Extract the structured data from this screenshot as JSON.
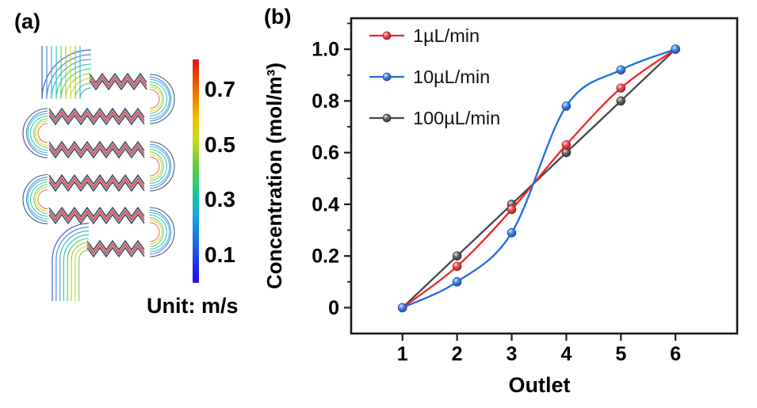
{
  "figure": {
    "panel_a": {
      "label": "(a)",
      "colorbar": {
        "tick_labels": [
          "0.7",
          "0.5",
          "0.3",
          "0.1"
        ],
        "unit_label": "Unit: m/s",
        "gradient_stops": [
          "#e01313 0%",
          "#ee6a00 13%",
          "#f0c400 27%",
          "#c8dc20 36%",
          "#62cc3a 48%",
          "#16c896 60%",
          "#12aadc 70%",
          "#1e6ce6 82%",
          "#2222ee 94%",
          "#2a10e8 100%"
        ]
      }
    },
    "panel_b": {
      "label": "(b)"
    }
  },
  "chart_data": {
    "type": "line",
    "title": "",
    "xlabel": "Outlet",
    "ylabel": "Concentration (mol/m³)",
    "x": [
      1,
      2,
      3,
      4,
      5,
      6
    ],
    "series": [
      {
        "name": "1µL/min",
        "color": "#ee2429",
        "values": [
          0,
          0.16,
          0.38,
          0.63,
          0.85,
          1.0
        ]
      },
      {
        "name": "10µL/min",
        "color": "#1d6ce8",
        "values": [
          0,
          0.1,
          0.29,
          0.78,
          0.92,
          1.0
        ]
      },
      {
        "name": "100µL/min",
        "color": "#474747",
        "values": [
          0,
          0.2,
          0.4,
          0.6,
          0.8,
          1.0
        ]
      }
    ],
    "draw_order": [
      2,
      0,
      1
    ],
    "xlim": [
      0.06,
      7.13
    ],
    "ylim": [
      -0.1,
      1.12
    ],
    "xticks": [
      1,
      2,
      3,
      4,
      5,
      6
    ],
    "xtick_labels": [
      "1",
      "2",
      "3",
      "4",
      "5",
      "6"
    ],
    "yticks": [
      0,
      0.2,
      0.4,
      0.6,
      0.8,
      1.0
    ],
    "ytick_labels": [
      "0",
      "0.2",
      "0.4",
      "0.6",
      "0.8",
      "1.0"
    ],
    "yminor": [
      0.1,
      0.3,
      0.5,
      0.7,
      0.9,
      1.1
    ],
    "grid": false,
    "legend_position": "top-left",
    "marker": "sphere",
    "smooth": true,
    "axis_color": "#1a1a1a"
  }
}
